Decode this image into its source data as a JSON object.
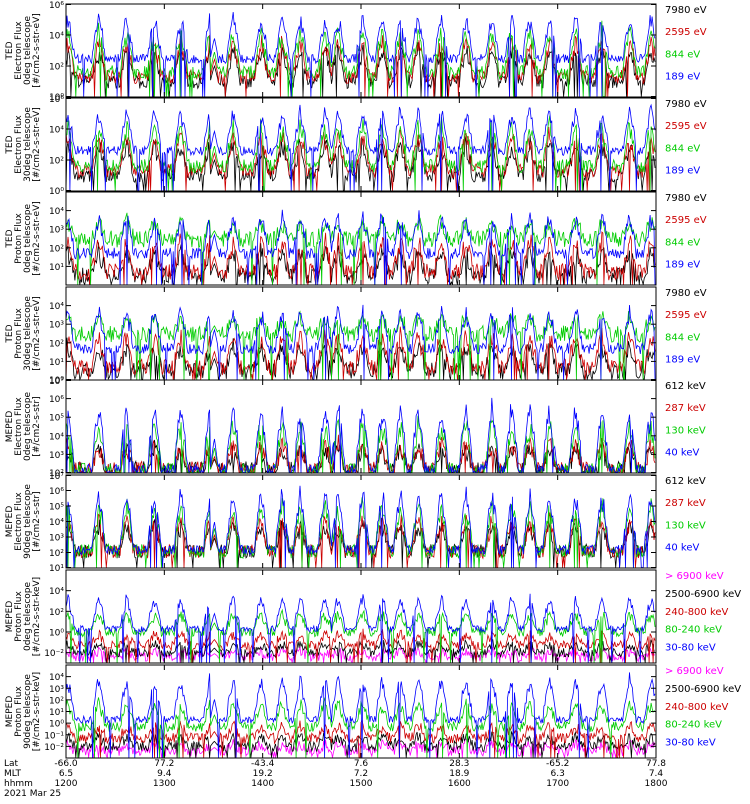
{
  "chart_data": [
    {
      "type": "line",
      "ylabel_lines": [
        "TED",
        "Electron Flux",
        "0deg telescope",
        "[#/cm2-s-str-eV]"
      ],
      "ylim": [
        1.0,
        1000000.0
      ],
      "log": true,
      "y_ticks": [
        {
          "v": 1.0,
          "l": "10⁰"
        },
        {
          "v": 100.0,
          "l": "10²"
        },
        {
          "v": 10000.0,
          "l": "10⁴"
        },
        {
          "v": 1000000.0,
          "l": "10⁶"
        }
      ],
      "series": [
        {
          "name": "7980 eV",
          "color": "#000000",
          "base": 10,
          "peak": 2000.0
        },
        {
          "name": "2595 eV",
          "color": "#cc0000",
          "base": 20,
          "peak": 8000.0
        },
        {
          "name": "844 eV",
          "color": "#00cc00",
          "base": 40,
          "peak": 40000.0
        },
        {
          "name": "189 eV",
          "color": "#0000ff",
          "base": 300,
          "peak": 300000.0
        }
      ]
    },
    {
      "type": "line",
      "ylabel_lines": [
        "TED",
        "Electron Flux",
        "30deg telescope",
        "[#/cm2-s-str-eV]"
      ],
      "ylim": [
        1.0,
        1000000.0
      ],
      "log": true,
      "y_ticks": [
        {
          "v": 1.0,
          "l": "10⁰"
        },
        {
          "v": 100.0,
          "l": "10²"
        },
        {
          "v": 10000.0,
          "l": "10⁴"
        },
        {
          "v": 1000000.0,
          "l": "10⁶"
        }
      ],
      "series": [
        {
          "name": "7980 eV",
          "color": "#000000",
          "base": 10,
          "peak": 2000.0
        },
        {
          "name": "2595 eV",
          "color": "#cc0000",
          "base": 20,
          "peak": 8000.0
        },
        {
          "name": "844 eV",
          "color": "#00cc00",
          "base": 40,
          "peak": 40000.0
        },
        {
          "name": "189 eV",
          "color": "#0000ff",
          "base": 400,
          "peak": 300000.0
        }
      ]
    },
    {
      "type": "line",
      "ylabel_lines": [
        "TED",
        "Proton Flux",
        "0deg telescope",
        "[#/cm2-s-str-eV]"
      ],
      "ylim": [
        1.0,
        100000.0
      ],
      "log": true,
      "y_ticks": [
        {
          "v": 10.0,
          "l": "10¹"
        },
        {
          "v": 100.0,
          "l": "10²"
        },
        {
          "v": 1000.0,
          "l": "10³"
        },
        {
          "v": 10000.0,
          "l": "10⁴"
        }
      ],
      "series": [
        {
          "name": "7980 eV",
          "color": "#000000",
          "base": 3,
          "peak": 100
        },
        {
          "name": "2595 eV",
          "color": "#cc0000",
          "base": 5,
          "peak": 400
        },
        {
          "name": "844 eV",
          "color": "#00cc00",
          "base": 300,
          "peak": 3000.0
        },
        {
          "name": "189 eV",
          "color": "#0000ff",
          "base": 50,
          "peak": 10000.0
        }
      ]
    },
    {
      "type": "line",
      "ylabel_lines": [
        "TED",
        "Proton Flux",
        "30deg telescope",
        "[#/cm2-s-str-eV]"
      ],
      "ylim": [
        1.0,
        100000.0
      ],
      "log": true,
      "y_ticks": [
        {
          "v": 1.0,
          "l": "10⁰"
        },
        {
          "v": 10.0,
          "l": "10¹"
        },
        {
          "v": 100.0,
          "l": "10²"
        },
        {
          "v": 1000.0,
          "l": "10³"
        },
        {
          "v": 10000.0,
          "l": "10⁴"
        }
      ],
      "series": [
        {
          "name": "7980 eV",
          "color": "#000000",
          "base": 3,
          "peak": 100
        },
        {
          "name": "2595 eV",
          "color": "#cc0000",
          "base": 5,
          "peak": 400
        },
        {
          "name": "844 eV",
          "color": "#00cc00",
          "base": 300,
          "peak": 3000.0
        },
        {
          "name": "189 eV",
          "color": "#0000ff",
          "base": 50,
          "peak": 10000.0
        }
      ]
    },
    {
      "type": "line",
      "ylabel_lines": [
        "MEPED",
        "Electron Flux",
        "0deg telescope",
        "[#/cm2-s-str]"
      ],
      "ylim": [
        100.0,
        10000000.0
      ],
      "log": true,
      "y_ticks": [
        {
          "v": 100.0,
          "l": "10²"
        },
        {
          "v": 1000.0,
          "l": "10³"
        },
        {
          "v": 10000.0,
          "l": "10⁴"
        },
        {
          "v": 100000.0,
          "l": "10⁵"
        },
        {
          "v": 1000000.0,
          "l": "10⁶"
        },
        {
          "v": 10000000.0,
          "l": "10⁷"
        }
      ],
      "series": [
        {
          "name": "612 keV",
          "color": "#000000",
          "base": 150,
          "peak": 3000.0
        },
        {
          "name": "287 keV",
          "color": "#cc0000",
          "base": 150,
          "peak": 6000.0
        },
        {
          "name": "130 keV",
          "color": "#00cc00",
          "base": 120,
          "peak": 100000.0
        },
        {
          "name": "40 keV",
          "color": "#0000ff",
          "base": 150,
          "peak": 1000000.0
        }
      ]
    },
    {
      "type": "line",
      "ylabel_lines": [
        "MEPED",
        "Electron Flux",
        "90deg telescope",
        "[#/cm2-s-str]"
      ],
      "ylim": [
        10.0,
        10000000.0
      ],
      "log": true,
      "y_ticks": [
        {
          "v": 10.0,
          "l": "10¹"
        },
        {
          "v": 100.0,
          "l": "10²"
        },
        {
          "v": 1000.0,
          "l": "10³"
        },
        {
          "v": 10000.0,
          "l": "10⁴"
        },
        {
          "v": 100000.0,
          "l": "10⁵"
        },
        {
          "v": 1000000.0,
          "l": "10⁶"
        },
        {
          "v": 10000000.0,
          "l": "10⁷"
        }
      ],
      "series": [
        {
          "name": "612 keV",
          "color": "#000000",
          "base": 120,
          "peak": 10000.0
        },
        {
          "name": "287 keV",
          "color": "#cc0000",
          "base": 120,
          "peak": 30000.0
        },
        {
          "name": "130 keV",
          "color": "#00cc00",
          "base": 120,
          "peak": 300000.0
        },
        {
          "name": "40 keV",
          "color": "#0000ff",
          "base": 150,
          "peak": 2000000.0
        }
      ]
    },
    {
      "type": "line",
      "ylabel_lines": [
        "MEPED",
        "Proton Flux",
        "0deg telescope",
        "[#/cm2-s-str-keV]"
      ],
      "ylim": [
        0.001,
        1000000.0
      ],
      "log": true,
      "y_ticks": [
        {
          "v": 0.01,
          "l": "10⁻²"
        },
        {
          "v": 1.0,
          "l": "10⁰"
        },
        {
          "v": 100.0,
          "l": "10²"
        },
        {
          "v": 10000.0,
          "l": "10⁴"
        }
      ],
      "series": [
        {
          "name": "> 6900 keV",
          "color": "#ff00ff",
          "base": 0.004,
          "peak": 0.02
        },
        {
          "name": "2500-6900 keV",
          "color": "#000000",
          "base": 0.01,
          "peak": 0.1
        },
        {
          "name": "240-800 keV",
          "color": "#cc0000",
          "base": 0.05,
          "peak": 1
        },
        {
          "name": "80-240 keV",
          "color": "#00cc00",
          "base": 1,
          "peak": 100
        },
        {
          "name": "30-80 keV",
          "color": "#0000ff",
          "base": 2,
          "peak": 5000.0
        }
      ]
    },
    {
      "type": "line",
      "ylabel_lines": [
        "MEPED",
        "Proton Flux",
        "90deg telescope",
        "[#/cm2-s-str-keV]"
      ],
      "ylim": [
        0.001,
        100000.0
      ],
      "log": true,
      "y_ticks": [
        {
          "v": 0.01,
          "l": "10⁻²"
        },
        {
          "v": 0.1,
          "l": "10⁻¹"
        },
        {
          "v": 1.0,
          "l": "10⁰"
        },
        {
          "v": 10.0,
          "l": "10¹"
        },
        {
          "v": 100.0,
          "l": "10²"
        },
        {
          "v": 1000.0,
          "l": "10³"
        },
        {
          "v": 10000.0,
          "l": "10⁴"
        }
      ],
      "series": [
        {
          "name": "> 6900 keV",
          "color": "#ff00ff",
          "base": 0.004,
          "peak": 0.02
        },
        {
          "name": "2500-6900 keV",
          "color": "#000000",
          "base": 0.01,
          "peak": 0.1
        },
        {
          "name": "240-800 keV",
          "color": "#cc0000",
          "base": 0.05,
          "peak": 1
        },
        {
          "name": "80-240 keV",
          "color": "#00cc00",
          "base": 0.5,
          "peak": 100
        },
        {
          "name": "30-80 keV",
          "color": "#0000ff",
          "base": 2,
          "peak": 20000.0
        }
      ]
    }
  ],
  "x_axis": {
    "xlim": [
      "12:00",
      "18:00"
    ],
    "ticks": [
      {
        "t": "12:00",
        "lat": "-66.0",
        "mlt": "6.5",
        "hhmm": "1200"
      },
      {
        "t": "13:00",
        "lat": "77.2",
        "mlt": "9.4",
        "hhmm": "1300"
      },
      {
        "t": "14:00",
        "lat": "-43.4",
        "mlt": "19.2",
        "hhmm": "1400"
      },
      {
        "t": "15:00",
        "lat": "7.6",
        "mlt": "7.2",
        "hhmm": "1500"
      },
      {
        "t": "16:00",
        "lat": "28.3",
        "mlt": "18.9",
        "hhmm": "1600"
      },
      {
        "t": "17:00",
        "lat": "-65.2",
        "mlt": "6.3",
        "hhmm": "1700"
      },
      {
        "t": "18:00",
        "lat": "77.8",
        "mlt": "7.4",
        "hhmm": "1800"
      }
    ],
    "row_labels": {
      "lat": "Lat",
      "mlt": "MLT",
      "hhmm": "hhmm"
    },
    "date": "2021 Mar 25"
  },
  "events": {
    "auroral_crossings": [
      "12:01",
      "12:20",
      "12:37",
      "12:54",
      "13:10",
      "13:28",
      "13:42",
      "13:59",
      "14:12",
      "14:23",
      "14:38",
      "14:46",
      "15:01",
      "15:13",
      "15:24",
      "15:35",
      "15:49",
      "16:04",
      "16:20",
      "16:32",
      "16:43",
      "16:55",
      "17:11",
      "17:27",
      "17:44",
      "17:57"
    ],
    "data_gap": [
      "13:28",
      "13:33"
    ]
  }
}
